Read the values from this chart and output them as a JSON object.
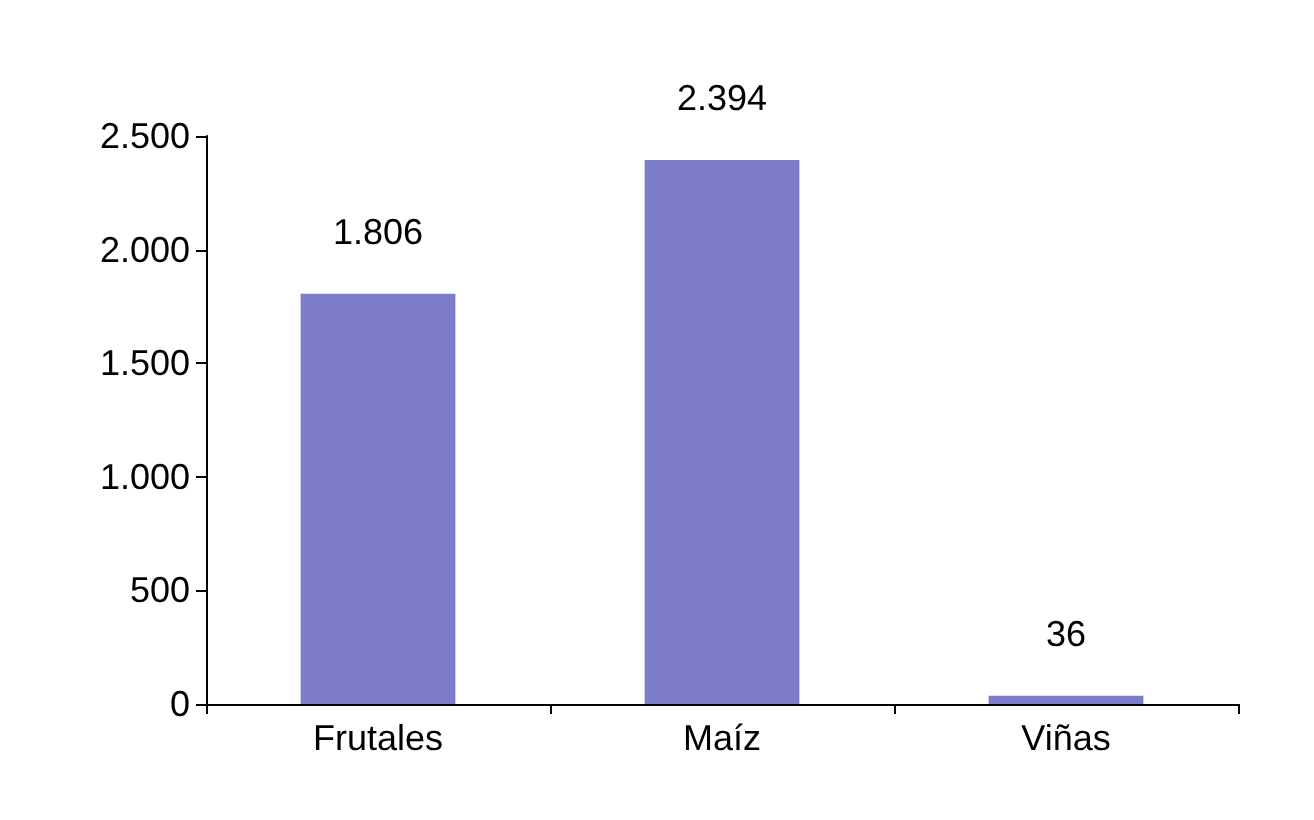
{
  "chart_data": {
    "type": "bar",
    "categories": [
      "Frutales",
      "Maíz",
      "Viñas"
    ],
    "values": [
      1806,
      2394,
      36
    ],
    "value_labels": [
      "1.806",
      "2.394",
      "36"
    ],
    "color": "#7c7cc8",
    "ylim": [
      0,
      2500
    ],
    "yticks": [
      {
        "value": 0,
        "label": "0"
      },
      {
        "value": 500,
        "label": "500"
      },
      {
        "value": 1000,
        "label": "1.000"
      },
      {
        "value": 1500,
        "label": "1.500"
      },
      {
        "value": 2000,
        "label": "2.000"
      },
      {
        "value": 2500,
        "label": "2.500"
      }
    ],
    "grid": false
  }
}
